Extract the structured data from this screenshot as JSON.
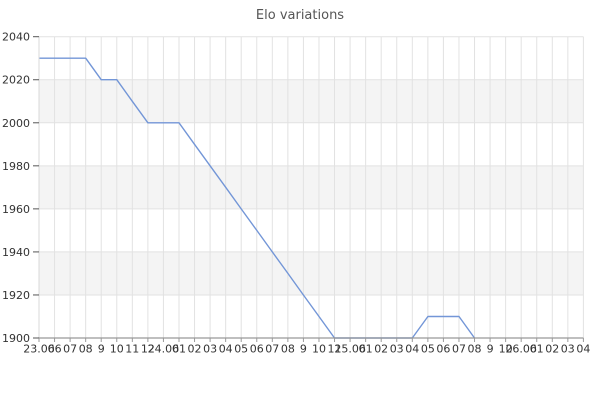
{
  "chart_data": {
    "type": "line",
    "title": "Elo variations",
    "y_tick_labels": [
      "2040",
      "2020",
      "2000",
      "1980",
      "1960",
      "1940",
      "1920",
      "1900"
    ],
    "ylim": [
      1900,
      2040
    ],
    "y_step": 20,
    "x_tick_labels": [
      "23.06",
      "06",
      "07",
      "08",
      "9",
      "10",
      "11",
      "12",
      "24.06",
      "01",
      "02",
      "03",
      "04",
      "05",
      "06",
      "07",
      "08",
      "9",
      "10",
      "11",
      "25.06",
      "01",
      "02",
      "03",
      "04",
      "05",
      "06",
      "07",
      "08",
      "9",
      "10",
      "26.06",
      "01",
      "02",
      "03",
      "04"
    ],
    "series": [
      {
        "name": "Elo",
        "values": [
          2030,
          2030,
          2030,
          2030,
          2020,
          2020,
          2010,
          2000,
          2000,
          2000,
          1990,
          1980,
          1970,
          1960,
          1950,
          1940,
          1930,
          1920,
          1910,
          1900,
          1900,
          1900,
          1900,
          1900,
          1900,
          1910,
          1910,
          1910,
          1900
        ]
      }
    ],
    "legend": false,
    "grid": true,
    "background_bands": true
  },
  "colors": {
    "line": "#7396d7",
    "band": "#f4f4f4",
    "grid": "#e2e2e2",
    "left_axis": "#d8d8d8",
    "bottom_axis": "#999999",
    "tick_mark": "#555555",
    "tick_text": "#333333",
    "title_text": "#555555",
    "background": "#ffffff"
  }
}
